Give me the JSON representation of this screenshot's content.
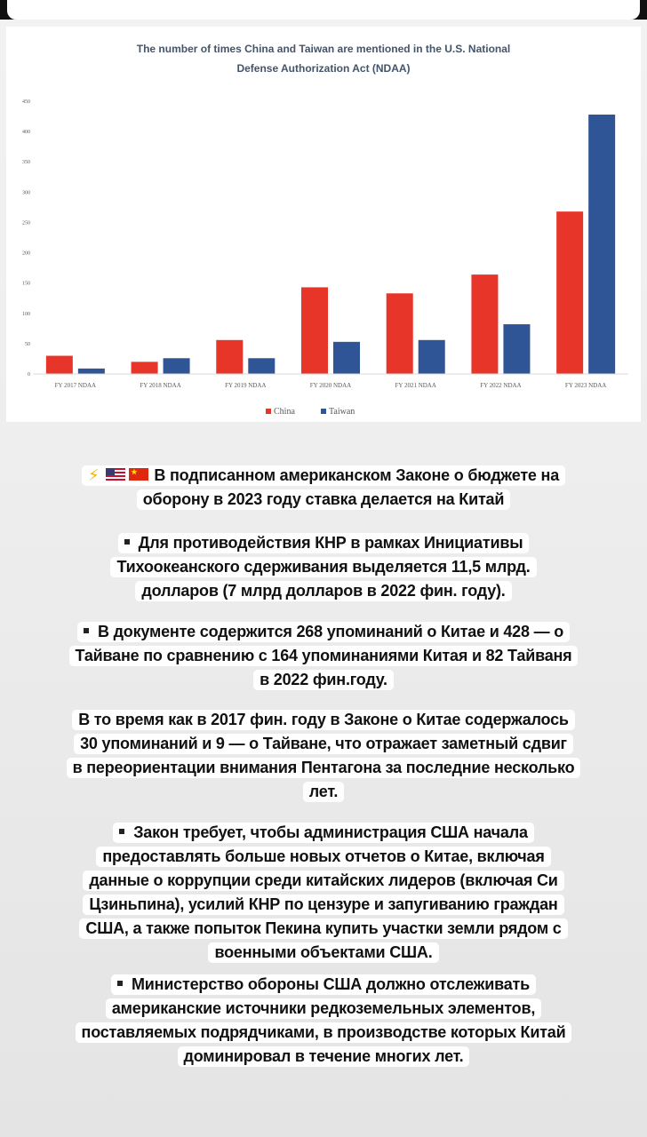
{
  "chart_data": {
    "type": "bar",
    "title_lines": [
      "The number of times China and Taiwan are mentioned in the U.S. National",
      "Defense Authorization Act (NDAA)"
    ],
    "categories": [
      "FY 2017 NDAA",
      "FY 2018 NDAA",
      "FY 2019 NDAA",
      "FY 2020 NDAA",
      "FY 2021 NDAA",
      "FY 2022 NDAA",
      "FY 2023 NDAA"
    ],
    "series": [
      {
        "name": "China",
        "color": "#e8352a",
        "values": [
          30,
          20,
          56,
          143,
          133,
          164,
          268
        ]
      },
      {
        "name": "Taiwan",
        "color": "#2f5597",
        "values": [
          9,
          26,
          26,
          53,
          56,
          82,
          428
        ]
      }
    ],
    "yticks": [
      "450",
      "400",
      "350",
      "300",
      "250",
      "200",
      "150",
      "100",
      "50",
      "0"
    ],
    "ylim": [
      0,
      450
    ],
    "grid": false,
    "legend_position": "bottom"
  },
  "text_blocks": [
    {
      "icon": "⚡",
      "lines": [
        "В подписанном американском Законе о бюджете на",
        "оборону в 2023 году ставка делается на Китай"
      ]
    },
    {
      "lines": [
        "Для противодействия КНР в рамках Инициативы",
        "Тихоокеанского сдерживания выделяется 11,5 млрд.",
        "долларов (7 млрд долларов в 2022 фин. году)."
      ]
    },
    {
      "lines": [
        "В документе содержится 268 упоминаний о Китае и 428 — о",
        "Тайване по сравнению с 164 упоминаниями Китая и 82 Тайваня",
        "в 2022 фин.году."
      ]
    },
    {
      "lines": [
        "В то время как в 2017 фин. году в Законе о Китае содержалось",
        "30 упоминаний и 9 — о Тайване, что отражает заметный сдвиг",
        "в переориентации внимания Пентагона за последние несколько",
        "лет."
      ]
    },
    {
      "lines": [
        "Закон требует, чтобы администрация США начала",
        "предоставлять больше новых отчетов о Китае, включая",
        "данные о коррупции среди китайских лидеров (включая Си",
        "Цзиньпина), усилий КНР по цензуре и запугиванию граждан",
        "США, а также попыток Пекина купить участки земли рядом с",
        "военными объектами США."
      ]
    },
    {
      "lines": [
        "Министерство обороны США должно отслеживать",
        "американские источники редкоземельных элементов,",
        "поставляемых подрядчиками, в производстве которых Китай",
        "доминировал в течение многих лет."
      ]
    }
  ]
}
